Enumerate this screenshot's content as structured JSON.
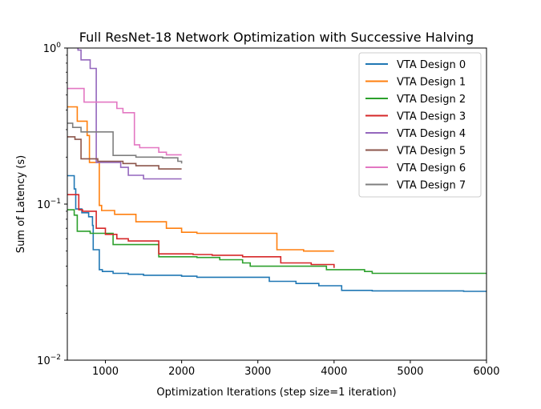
{
  "chart_data": {
    "type": "line",
    "title": "Full ResNet-18 Network Optimization with Successive Halving",
    "xlabel": "Optimization Iterations (step size=1 iteration)",
    "ylabel": "Sum of Latency (s)",
    "xlim": [
      500,
      6000
    ],
    "ylim": [
      0.01,
      1
    ],
    "yscale": "log",
    "grid": false,
    "legend_position": "top-right",
    "x_ticks": [
      {
        "value": 1000,
        "label": "1000"
      },
      {
        "value": 2000,
        "label": "2000"
      },
      {
        "value": 3000,
        "label": "3000"
      },
      {
        "value": 4000,
        "label": "4000"
      },
      {
        "value": 5000,
        "label": "5000"
      },
      {
        "value": 6000,
        "label": "6000"
      }
    ],
    "y_ticks": [
      {
        "value": 0.01,
        "base": "10",
        "exp": "−2"
      },
      {
        "value": 0.1,
        "base": "10",
        "exp": "−1"
      },
      {
        "value": 1,
        "base": "10",
        "exp": "0"
      }
    ],
    "series": [
      {
        "name": "VTA Design 0",
        "color": "#1f77b4",
        "points": [
          [
            500,
            0.152
          ],
          [
            590,
            0.152
          ],
          [
            590,
            0.125
          ],
          [
            610,
            0.125
          ],
          [
            610,
            0.093
          ],
          [
            690,
            0.093
          ],
          [
            690,
            0.088
          ],
          [
            780,
            0.088
          ],
          [
            780,
            0.083
          ],
          [
            830,
            0.083
          ],
          [
            830,
            0.073
          ],
          [
            840,
            0.073
          ],
          [
            840,
            0.051
          ],
          [
            920,
            0.051
          ],
          [
            920,
            0.038
          ],
          [
            960,
            0.038
          ],
          [
            960,
            0.037
          ],
          [
            1100,
            0.037
          ],
          [
            1100,
            0.036
          ],
          [
            1300,
            0.036
          ],
          [
            1300,
            0.0355
          ],
          [
            1500,
            0.0355
          ],
          [
            1500,
            0.035
          ],
          [
            2000,
            0.035
          ],
          [
            2000,
            0.0345
          ],
          [
            2200,
            0.0345
          ],
          [
            2200,
            0.034
          ],
          [
            3150,
            0.034
          ],
          [
            3150,
            0.032
          ],
          [
            3500,
            0.032
          ],
          [
            3500,
            0.031
          ],
          [
            3800,
            0.031
          ],
          [
            3800,
            0.03
          ],
          [
            4100,
            0.03
          ],
          [
            4100,
            0.028
          ],
          [
            4500,
            0.028
          ],
          [
            4500,
            0.0278
          ],
          [
            5700,
            0.0278
          ],
          [
            5700,
            0.0276
          ],
          [
            6000,
            0.0276
          ]
        ]
      },
      {
        "name": "VTA Design 1",
        "color": "#ff7f0e",
        "points": [
          [
            500,
            0.42
          ],
          [
            630,
            0.42
          ],
          [
            630,
            0.34
          ],
          [
            760,
            0.34
          ],
          [
            760,
            0.275
          ],
          [
            790,
            0.275
          ],
          [
            790,
            0.185
          ],
          [
            920,
            0.185
          ],
          [
            920,
            0.098
          ],
          [
            950,
            0.098
          ],
          [
            950,
            0.091
          ],
          [
            1120,
            0.091
          ],
          [
            1120,
            0.086
          ],
          [
            1400,
            0.086
          ],
          [
            1400,
            0.077
          ],
          [
            1800,
            0.077
          ],
          [
            1800,
            0.07
          ],
          [
            2000,
            0.07
          ],
          [
            2000,
            0.066
          ],
          [
            2200,
            0.066
          ],
          [
            2200,
            0.065
          ],
          [
            3250,
            0.065
          ],
          [
            3250,
            0.051
          ],
          [
            3600,
            0.051
          ],
          [
            3600,
            0.05
          ],
          [
            4000,
            0.05
          ]
        ]
      },
      {
        "name": "VTA Design 2",
        "color": "#2ca02c",
        "points": [
          [
            500,
            0.092
          ],
          [
            590,
            0.092
          ],
          [
            590,
            0.085
          ],
          [
            630,
            0.085
          ],
          [
            630,
            0.067
          ],
          [
            800,
            0.067
          ],
          [
            800,
            0.065
          ],
          [
            1100,
            0.065
          ],
          [
            1100,
            0.055
          ],
          [
            1700,
            0.055
          ],
          [
            1700,
            0.046
          ],
          [
            2200,
            0.046
          ],
          [
            2200,
            0.0455
          ],
          [
            2500,
            0.0455
          ],
          [
            2500,
            0.044
          ],
          [
            2800,
            0.044
          ],
          [
            2800,
            0.042
          ],
          [
            2900,
            0.042
          ],
          [
            2900,
            0.04
          ],
          [
            3900,
            0.04
          ],
          [
            3900,
            0.038
          ],
          [
            4400,
            0.038
          ],
          [
            4400,
            0.037
          ],
          [
            4500,
            0.037
          ],
          [
            4500,
            0.036
          ],
          [
            6000,
            0.036
          ]
        ]
      },
      {
        "name": "VTA Design 3",
        "color": "#d62728",
        "points": [
          [
            500,
            0.115
          ],
          [
            650,
            0.115
          ],
          [
            650,
            0.092
          ],
          [
            700,
            0.092
          ],
          [
            700,
            0.09
          ],
          [
            880,
            0.09
          ],
          [
            880,
            0.07
          ],
          [
            1000,
            0.07
          ],
          [
            1000,
            0.064
          ],
          [
            1150,
            0.064
          ],
          [
            1150,
            0.06
          ],
          [
            1300,
            0.06
          ],
          [
            1300,
            0.058
          ],
          [
            1700,
            0.058
          ],
          [
            1700,
            0.048
          ],
          [
            2150,
            0.048
          ],
          [
            2150,
            0.0475
          ],
          [
            2400,
            0.0475
          ],
          [
            2400,
            0.047
          ],
          [
            2800,
            0.047
          ],
          [
            2800,
            0.046
          ],
          [
            3300,
            0.046
          ],
          [
            3300,
            0.042
          ],
          [
            3700,
            0.042
          ],
          [
            3700,
            0.041
          ],
          [
            4000,
            0.041
          ],
          [
            4000,
            0.039
          ]
        ]
      },
      {
        "name": "VTA Design 4",
        "color": "#9467bd",
        "points": [
          [
            500,
            1.05
          ],
          [
            640,
            1.05
          ],
          [
            640,
            0.97
          ],
          [
            680,
            0.97
          ],
          [
            680,
            0.84
          ],
          [
            800,
            0.84
          ],
          [
            800,
            0.74
          ],
          [
            880,
            0.74
          ],
          [
            880,
            0.185
          ],
          [
            1200,
            0.185
          ],
          [
            1200,
            0.172
          ],
          [
            1300,
            0.172
          ],
          [
            1300,
            0.153
          ],
          [
            1500,
            0.153
          ],
          [
            1500,
            0.145
          ],
          [
            2000,
            0.145
          ]
        ]
      },
      {
        "name": "VTA Design 5",
        "color": "#8c564b",
        "points": [
          [
            500,
            0.27
          ],
          [
            600,
            0.27
          ],
          [
            600,
            0.26
          ],
          [
            680,
            0.26
          ],
          [
            680,
            0.195
          ],
          [
            900,
            0.195
          ],
          [
            900,
            0.188
          ],
          [
            1230,
            0.188
          ],
          [
            1230,
            0.182
          ],
          [
            1400,
            0.182
          ],
          [
            1400,
            0.176
          ],
          [
            1700,
            0.176
          ],
          [
            1700,
            0.168
          ],
          [
            2000,
            0.168
          ]
        ]
      },
      {
        "name": "VTA Design 6",
        "color": "#e377c2",
        "points": [
          [
            500,
            0.55
          ],
          [
            720,
            0.55
          ],
          [
            720,
            0.45
          ],
          [
            1150,
            0.45
          ],
          [
            1150,
            0.41
          ],
          [
            1230,
            0.41
          ],
          [
            1230,
            0.385
          ],
          [
            1380,
            0.385
          ],
          [
            1380,
            0.24
          ],
          [
            1450,
            0.24
          ],
          [
            1450,
            0.23
          ],
          [
            1700,
            0.23
          ],
          [
            1700,
            0.215
          ],
          [
            1800,
            0.215
          ],
          [
            1800,
            0.207
          ],
          [
            2000,
            0.207
          ]
        ]
      },
      {
        "name": "VTA Design 7",
        "color": "#7f7f7f",
        "points": [
          [
            500,
            0.33
          ],
          [
            570,
            0.33
          ],
          [
            570,
            0.31
          ],
          [
            680,
            0.31
          ],
          [
            680,
            0.29
          ],
          [
            1100,
            0.29
          ],
          [
            1100,
            0.205
          ],
          [
            1400,
            0.205
          ],
          [
            1400,
            0.2
          ],
          [
            1750,
            0.2
          ],
          [
            1750,
            0.198
          ],
          [
            1950,
            0.198
          ],
          [
            1950,
            0.188
          ],
          [
            2000,
            0.188
          ],
          [
            2000,
            0.182
          ]
        ]
      }
    ]
  }
}
